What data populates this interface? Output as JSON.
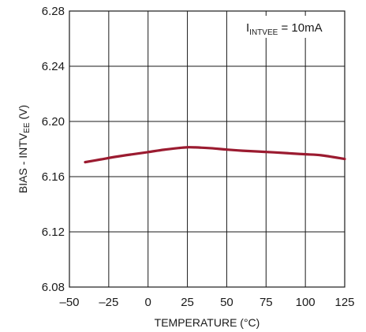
{
  "chart_data": {
    "type": "line",
    "xlabel": "TEMPERATURE (°C)",
    "ylabel": {
      "main": "BIAS - INTV",
      "sub": "EE",
      "suffix": " (V)"
    },
    "annotation": {
      "prefix": "I",
      "sub": "INTVEE",
      "suffix": " = 10mA"
    },
    "xlim": [
      -50,
      125
    ],
    "ylim": [
      6.08,
      6.28
    ],
    "xticks": [
      -50,
      -25,
      0,
      25,
      50,
      75,
      100,
      125
    ],
    "xtick_labels": [
      "–50",
      "–25",
      "0",
      "25",
      "50",
      "75",
      "100",
      "125"
    ],
    "yticks": [
      6.08,
      6.12,
      6.16,
      6.2,
      6.24,
      6.28
    ],
    "ytick_labels": [
      "6.08",
      "6.12",
      "6.16",
      "6.20",
      "6.24",
      "6.28"
    ],
    "grid": true,
    "line_color": "#9b1b30",
    "series": [
      {
        "x": [
          -40,
          -30,
          -20,
          -10,
          0,
          10,
          20,
          25,
          30,
          40,
          50,
          60,
          70,
          80,
          90,
          100,
          110,
          125
        ],
        "y": [
          6.1705,
          6.1725,
          6.1745,
          6.1762,
          6.1778,
          6.1795,
          6.1808,
          6.1813,
          6.1812,
          6.1806,
          6.1796,
          6.1788,
          6.1782,
          6.1776,
          6.1769,
          6.1762,
          6.1755,
          6.1728
        ]
      }
    ]
  }
}
